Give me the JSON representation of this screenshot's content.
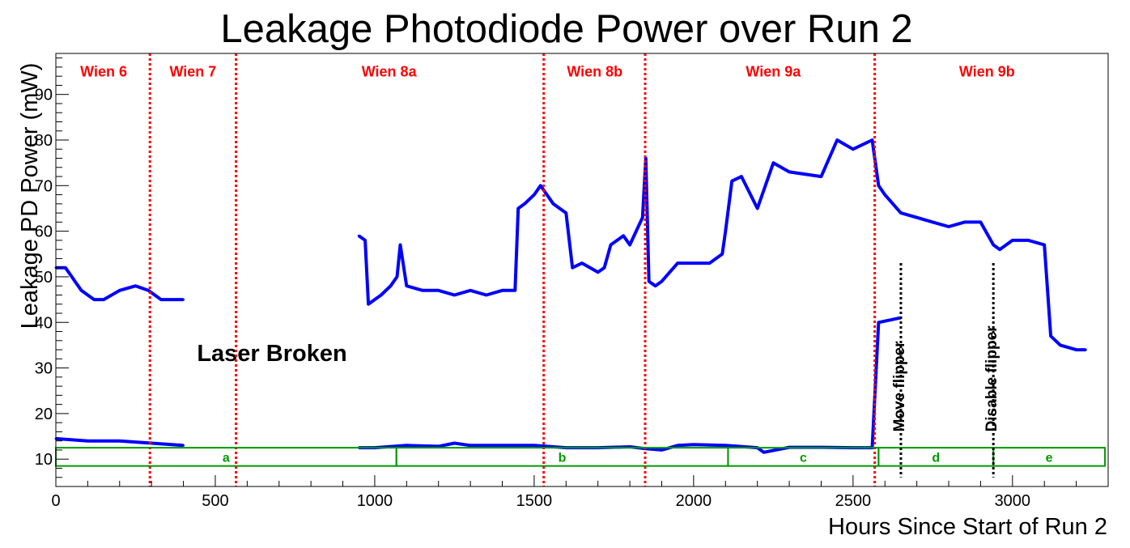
{
  "chart_data": {
    "type": "scatter",
    "title": "Leakage Photodiode Power over Run 2",
    "xlabel": "Hours Since Start of Run 2",
    "ylabel": "Leakage PD Power (mW)",
    "xlim": [
      0,
      3300
    ],
    "ylim": [
      4,
      99
    ],
    "x_ticks": [
      0,
      500,
      1000,
      1500,
      2000,
      2500,
      3000
    ],
    "y_ticks": [
      10,
      20,
      30,
      40,
      50,
      60,
      70,
      80,
      90
    ],
    "grid": false,
    "legend": "none",
    "colors": {
      "points": "#0000ff",
      "wien_line": "#ff0000",
      "flipper_line": "#000000",
      "period_box": "#009900",
      "annotation": "#000000"
    },
    "wien_boundaries": [
      295,
      565,
      1530,
      1848,
      2568
    ],
    "wien_labels": [
      {
        "text": "Wien 6",
        "x": 150,
        "y": 95
      },
      {
        "text": "Wien 7",
        "x": 430,
        "y": 95
      },
      {
        "text": "Wien 8a",
        "x": 1045,
        "y": 95
      },
      {
        "text": "Wien 8b",
        "x": 1690,
        "y": 95
      },
      {
        "text": "Wien 9a",
        "x": 2250,
        "y": 95
      },
      {
        "text": "Wien 9b",
        "x": 2920,
        "y": 95
      }
    ],
    "period_boxes": [
      {
        "label": "a",
        "x0": 0,
        "x1": 1068
      },
      {
        "label": "b",
        "x0": 1068,
        "x1": 2108
      },
      {
        "label": "c",
        "x0": 2108,
        "x1": 2580
      },
      {
        "label": "d",
        "x0": 2580,
        "x1": 2940
      },
      {
        "label": "e",
        "x0": 2940,
        "x1": 3290
      }
    ],
    "period_box_y": [
      8.5,
      12.5
    ],
    "flipper_events": [
      {
        "text": "Move flipper",
        "x": 2650,
        "y0": 6,
        "y1": 53
      },
      {
        "text": "Disable flipper",
        "x": 2940,
        "y0": 6,
        "y1": 53
      }
    ],
    "annotation": {
      "text": "Laser Broken",
      "x": 680,
      "y": 33
    },
    "series": [
      {
        "role": "high-band",
        "x": [
          0,
          30,
          50,
          60,
          80,
          100,
          120,
          150,
          200,
          250,
          290,
          330,
          360,
          400,
          950,
          970,
          980,
          1000,
          1020,
          1050,
          1070,
          1080,
          1100,
          1150,
          1200,
          1250,
          1300,
          1350,
          1400,
          1440,
          1450,
          1470,
          1500,
          1520,
          1530,
          1560,
          1600,
          1620,
          1650,
          1700,
          1720,
          1740,
          1780,
          1800,
          1840,
          1850,
          1860,
          1880,
          1900,
          1950,
          2000,
          2050,
          2090,
          2100,
          2120,
          2150,
          2200,
          2250,
          2300,
          2400,
          2450,
          2500,
          2560,
          2580,
          2600,
          2650,
          2700,
          2750,
          2800,
          2850,
          2900,
          2940,
          2960,
          3000,
          3050,
          3100,
          3120,
          3150,
          3200,
          3230
        ],
        "y": [
          52,
          52,
          50,
          49,
          47,
          46,
          45,
          45,
          47,
          48,
          47,
          45,
          45,
          45,
          59,
          58,
          44,
          45,
          46,
          48,
          50,
          57,
          48,
          47,
          47,
          46,
          47,
          46,
          47,
          47,
          65,
          66,
          68,
          70,
          69,
          66,
          64,
          52,
          53,
          51,
          52,
          57,
          59,
          57,
          63,
          76,
          49,
          48,
          49,
          53,
          53,
          53,
          55,
          60,
          71,
          72,
          65,
          75,
          73,
          72,
          80,
          78,
          80,
          70,
          68,
          64,
          63,
          62,
          61,
          62,
          62,
          57,
          56,
          58,
          58,
          57,
          37,
          35,
          34,
          34
        ]
      },
      {
        "role": "low-band",
        "x": [
          0,
          100,
          200,
          300,
          400,
          950,
          1000,
          1100,
          1200,
          1250,
          1300,
          1400,
          1500,
          1600,
          1700,
          1800,
          1850,
          1900,
          1950,
          2000,
          2100,
          2200,
          2220,
          2300,
          2400,
          2500,
          2560,
          2580,
          2650
        ],
        "y": [
          14.5,
          14,
          14,
          13.5,
          13,
          12.5,
          12.5,
          13,
          12.8,
          13.5,
          13,
          13,
          13,
          12.5,
          12.5,
          12.7,
          12.3,
          12,
          13,
          13.2,
          13,
          12.5,
          11.5,
          12.6,
          12.6,
          12.5,
          12.5,
          40,
          41
        ]
      }
    ]
  }
}
